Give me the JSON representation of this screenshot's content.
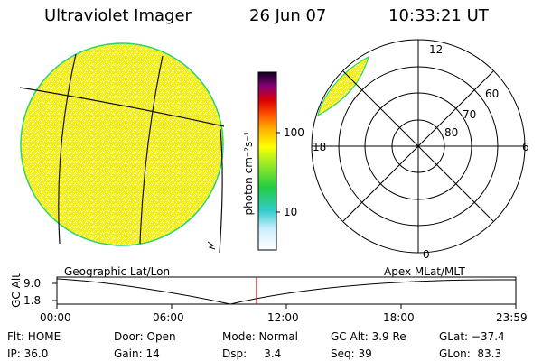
{
  "header": {
    "instrument": "Ultraviolet Imager",
    "date": "26 Jun 07",
    "time": "10:33:21 UT"
  },
  "colorbar": {
    "unit_label": "photon cm⁻²s⁻¹",
    "tick_labels": [
      "100",
      "10"
    ]
  },
  "polar": {
    "mlt_labels": [
      "12",
      "18",
      "6",
      "0"
    ],
    "lat_labels": [
      "60",
      "70",
      "80"
    ]
  },
  "altitude_panel": {
    "left_title": "Geographic Lat/Lon",
    "right_title": "Apex  MLat/MLT",
    "ylabel": "GC Alt",
    "y_ticks": [
      "9.0",
      "1.8"
    ],
    "x_ticks": [
      "00:00",
      "06:00",
      "12:00",
      "18:00",
      "23:59"
    ]
  },
  "status": {
    "filter": "Flt: HOME",
    "ip": "IP: 36.0",
    "door": "Door: Open",
    "gain": "Gain: 14",
    "mode": "Mode: Normal",
    "dsp": "Dsp:     3.4",
    "gc_alt": "GC Alt: 3.9 Re",
    "seq": "Seq: 39",
    "glat": "GLat: −37.4",
    "glon": "GLon:  83.3"
  },
  "colors": {
    "disk_fill": "#f2f20a",
    "disk_edge": "#2ad46a",
    "cursor": "#d80000"
  }
}
